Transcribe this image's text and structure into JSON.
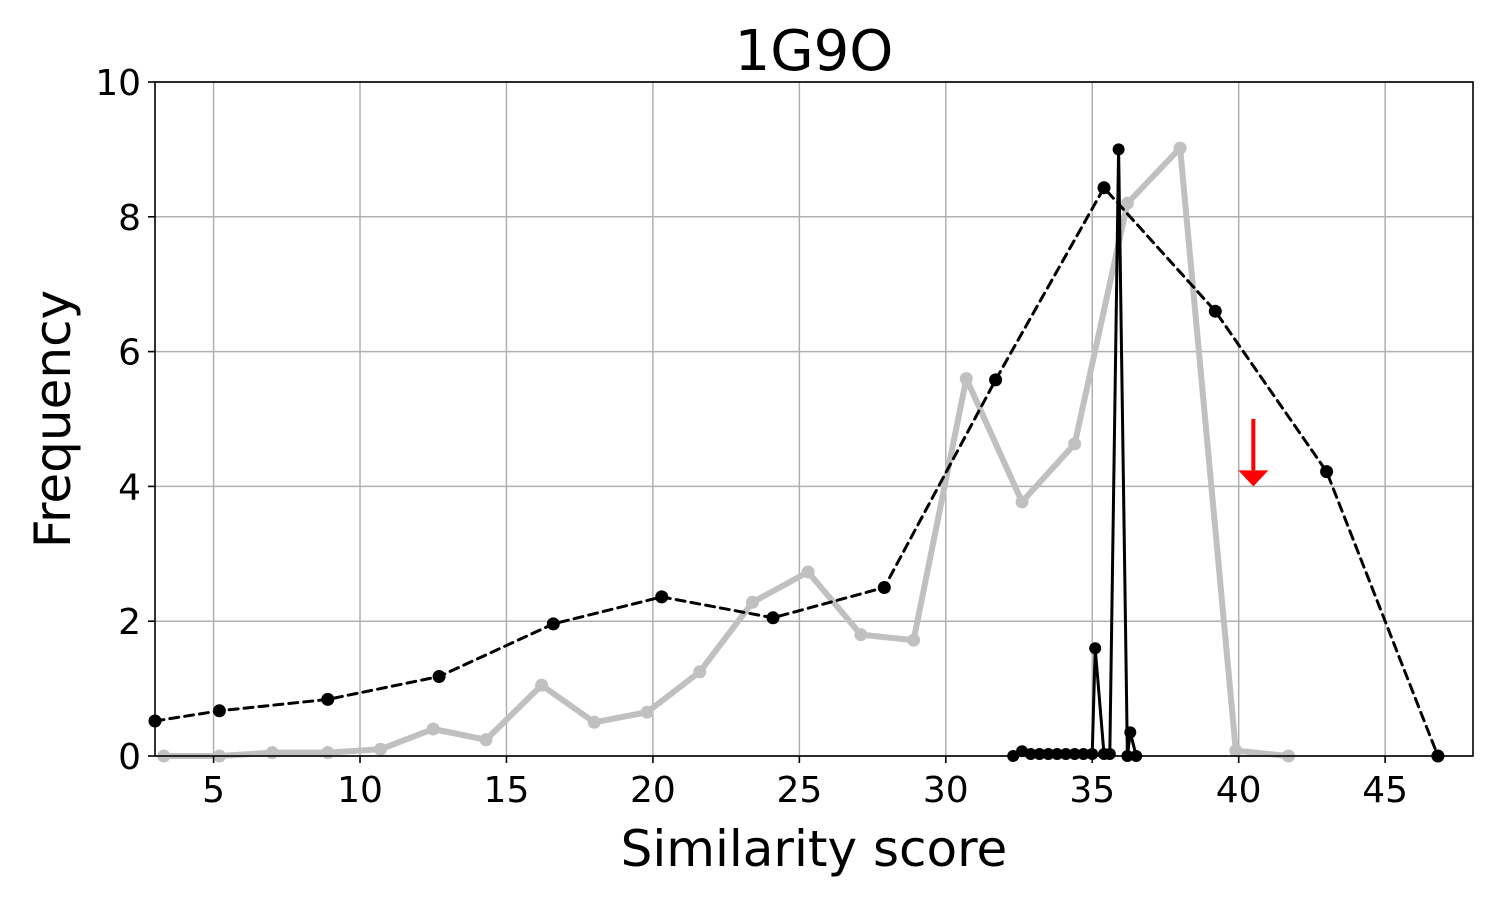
{
  "chart_data": {
    "type": "line",
    "title": "1G9O",
    "xlabel": "Similarity score",
    "ylabel": "Frequency",
    "xlim": [
      3,
      48
    ],
    "ylim": [
      0,
      10
    ],
    "x_ticks": [
      5,
      10,
      15,
      20,
      25,
      30,
      35,
      40,
      45
    ],
    "y_ticks": [
      0,
      2,
      4,
      6,
      8,
      10
    ],
    "grid": true,
    "series": [
      {
        "style": "gray-thick-solid",
        "color": "#c0c0c0",
        "points": [
          [
            3.3,
            0.0
          ],
          [
            5.2,
            0.0
          ],
          [
            7.0,
            0.05
          ],
          [
            8.9,
            0.05
          ],
          [
            10.7,
            0.1
          ],
          [
            12.5,
            0.4
          ],
          [
            14.3,
            0.24
          ],
          [
            16.2,
            1.05
          ],
          [
            18.0,
            0.5
          ],
          [
            19.8,
            0.65
          ],
          [
            21.6,
            1.25
          ],
          [
            23.4,
            2.28
          ],
          [
            25.3,
            2.73
          ],
          [
            27.1,
            1.8
          ],
          [
            28.9,
            1.72
          ],
          [
            30.7,
            5.6
          ],
          [
            32.6,
            3.77
          ],
          [
            34.4,
            4.63
          ],
          [
            36.2,
            8.2
          ],
          [
            38.0,
            9.02
          ],
          [
            39.9,
            0.08
          ],
          [
            41.7,
            0.0
          ]
        ]
      },
      {
        "style": "black-dashed",
        "color": "#000000",
        "points": [
          [
            3.0,
            0.52
          ],
          [
            5.2,
            0.67
          ],
          [
            8.9,
            0.84
          ],
          [
            12.7,
            1.18
          ],
          [
            16.6,
            1.96
          ],
          [
            20.3,
            2.36
          ],
          [
            24.1,
            2.05
          ],
          [
            27.9,
            2.5
          ],
          [
            31.7,
            5.58
          ],
          [
            35.4,
            8.43
          ],
          [
            39.2,
            6.6
          ],
          [
            43.0,
            4.22
          ],
          [
            46.8,
            0.0
          ]
        ]
      },
      {
        "style": "black-solid",
        "color": "#000000",
        "points": [
          [
            32.3,
            0.0
          ],
          [
            32.6,
            0.07
          ],
          [
            32.9,
            0.03
          ],
          [
            33.2,
            0.03
          ],
          [
            33.5,
            0.03
          ],
          [
            33.8,
            0.03
          ],
          [
            34.1,
            0.03
          ],
          [
            34.4,
            0.03
          ],
          [
            34.7,
            0.03
          ],
          [
            35.0,
            0.03
          ],
          [
            35.1,
            1.6
          ],
          [
            35.4,
            0.03
          ],
          [
            35.6,
            0.03
          ],
          [
            35.9,
            9.0
          ],
          [
            36.2,
            0.0
          ],
          [
            36.3,
            0.35
          ],
          [
            36.5,
            0.0
          ]
        ]
      }
    ],
    "annotations": [
      {
        "type": "arrow-down",
        "color": "#ff0000",
        "x": 40.5,
        "y_from": 5.0,
        "y_to": 4.0
      }
    ]
  }
}
